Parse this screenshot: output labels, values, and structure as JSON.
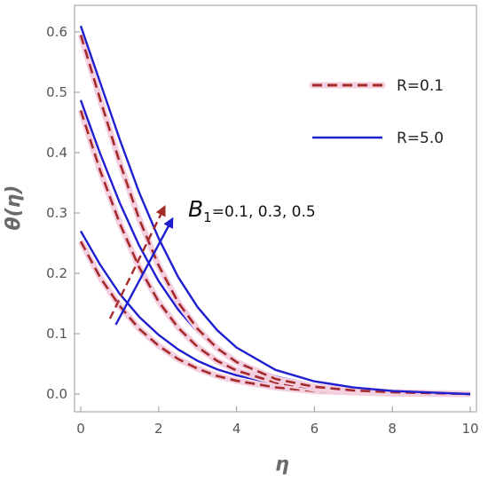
{
  "chart_data": {
    "type": "line",
    "title": "",
    "xlabel": "η",
    "ylabel": "θ(η)",
    "xlim": [
      0,
      10
    ],
    "ylim": [
      -0.03,
      0.63
    ],
    "x_ticks": [
      "0",
      "2",
      "4",
      "6",
      "8",
      "10"
    ],
    "y_ticks": [
      "0.0",
      "0.1",
      "0.2",
      "0.3",
      "0.4",
      "0.5",
      "0.6"
    ],
    "grid": false,
    "legend_position": "top-right",
    "legend": [
      {
        "label": "R=0.1",
        "color": "#a52a2a",
        "style": "dashed"
      },
      {
        "label": "R=5.0",
        "color": "#1f1fd0",
        "style": "solid"
      }
    ],
    "series": [
      {
        "name": "R=0.1",
        "group": "B1=0.1",
        "color": "#a52a2a",
        "style": "dashed",
        "x": [
          0,
          0.5,
          1,
          1.5,
          2,
          2.5,
          3,
          3.5,
          4,
          5,
          6,
          7,
          8,
          10
        ],
        "y": [
          0.253,
          0.193,
          0.146,
          0.108,
          0.08,
          0.058,
          0.042,
          0.03,
          0.022,
          0.011,
          0.005,
          0.003,
          0.001,
          0.0
        ]
      },
      {
        "name": "R=5.0",
        "group": "B1=0.1",
        "color": "#1f1fd0",
        "style": "solid",
        "x": [
          0,
          0.5,
          1,
          1.5,
          2,
          2.5,
          3,
          3.5,
          4,
          5,
          6,
          7,
          8,
          10
        ],
        "y": [
          0.27,
          0.214,
          0.166,
          0.128,
          0.098,
          0.074,
          0.055,
          0.041,
          0.031,
          0.017,
          0.009,
          0.005,
          0.002,
          0.0
        ]
      },
      {
        "name": "R=0.1",
        "group": "B1=0.3",
        "color": "#a52a2a",
        "style": "dashed",
        "x": [
          0,
          0.5,
          1,
          1.5,
          2,
          2.5,
          3,
          3.5,
          4,
          5,
          6,
          7,
          8,
          10
        ],
        "y": [
          0.47,
          0.37,
          0.283,
          0.21,
          0.153,
          0.11,
          0.078,
          0.055,
          0.039,
          0.019,
          0.009,
          0.004,
          0.002,
          0.0
        ]
      },
      {
        "name": "R=5.0",
        "group": "B1=0.3",
        "color": "#1f1fd0",
        "style": "solid",
        "x": [
          0,
          0.5,
          1,
          1.5,
          2,
          2.5,
          3,
          3.5,
          4,
          5,
          6,
          7,
          8,
          10
        ],
        "y": [
          0.487,
          0.398,
          0.317,
          0.246,
          0.187,
          0.14,
          0.103,
          0.076,
          0.055,
          0.029,
          0.015,
          0.008,
          0.004,
          0.0
        ]
      },
      {
        "name": "R=0.1",
        "group": "B1=0.5",
        "color": "#a52a2a",
        "style": "dashed",
        "x": [
          0,
          0.5,
          1,
          1.5,
          2,
          2.5,
          3,
          3.5,
          4,
          5,
          6,
          7,
          8,
          10
        ],
        "y": [
          0.595,
          0.488,
          0.384,
          0.29,
          0.213,
          0.152,
          0.108,
          0.076,
          0.053,
          0.025,
          0.012,
          0.006,
          0.003,
          0.0
        ]
      },
      {
        "name": "R=5.0",
        "group": "B1=0.5",
        "color": "#1f1fd0",
        "style": "solid",
        "x": [
          0,
          0.5,
          1,
          1.5,
          2,
          2.5,
          3,
          3.5,
          4,
          5,
          6,
          7,
          8,
          10
        ],
        "y": [
          0.61,
          0.516,
          0.422,
          0.334,
          0.258,
          0.194,
          0.144,
          0.106,
          0.077,
          0.04,
          0.021,
          0.011,
          0.005,
          0.0
        ]
      }
    ],
    "annotation": {
      "text_prefix": "B",
      "text_subscript": "1",
      "text_suffix": "=0.1, 0.3, 0.5",
      "arrows": [
        {
          "color": "#a52a2a",
          "style": "dashed",
          "from": [
            0.75,
            0.125
          ],
          "to": [
            2.15,
            0.31
          ]
        },
        {
          "color": "#1f1fd0",
          "style": "solid",
          "from": [
            0.9,
            0.115
          ],
          "to": [
            2.35,
            0.29
          ]
        }
      ],
      "anchor": [
        2.9,
        0.305
      ]
    }
  }
}
